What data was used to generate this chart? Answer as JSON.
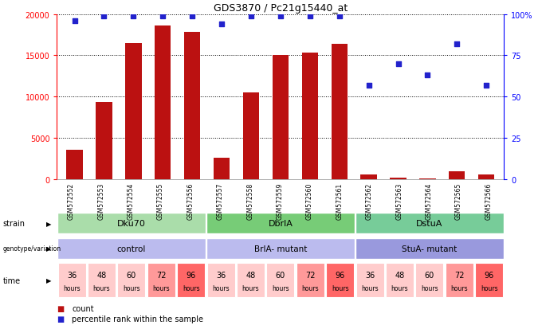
{
  "title": "GDS3870 / Pc21g15440_at",
  "samples": [
    "GSM572552",
    "GSM572553",
    "GSM572554",
    "GSM572555",
    "GSM572556",
    "GSM572557",
    "GSM572558",
    "GSM572559",
    "GSM572560",
    "GSM572561",
    "GSM572562",
    "GSM572563",
    "GSM572564",
    "GSM572565",
    "GSM572566"
  ],
  "counts": [
    3500,
    9300,
    16500,
    18600,
    17800,
    2600,
    10500,
    15000,
    15300,
    16400,
    500,
    200,
    100,
    900,
    500
  ],
  "percentiles": [
    96,
    99,
    99,
    99,
    99,
    94,
    99,
    99,
    99,
    99,
    57,
    70,
    63,
    82,
    57
  ],
  "bar_color": "#BB1111",
  "dot_color": "#2222CC",
  "ylim_left": [
    0,
    20000
  ],
  "ylim_right": [
    0,
    100
  ],
  "yticks_left": [
    0,
    5000,
    10000,
    15000,
    20000
  ],
  "yticks_right": [
    0,
    25,
    50,
    75,
    100
  ],
  "strains": [
    {
      "label": "Dku70",
      "start": 0,
      "end": 5,
      "color": "#AADDAA"
    },
    {
      "label": "DbrlA",
      "start": 5,
      "end": 10,
      "color": "#77CC77"
    },
    {
      "label": "DstuA",
      "start": 10,
      "end": 15,
      "color": "#77CC99"
    }
  ],
  "genotypes": [
    {
      "label": "control",
      "start": 0,
      "end": 5,
      "color": "#BBBBEE"
    },
    {
      "label": "BrlA- mutant",
      "start": 5,
      "end": 10,
      "color": "#BBBBEE"
    },
    {
      "label": "StuA- mutant",
      "start": 10,
      "end": 15,
      "color": "#9999DD"
    }
  ],
  "time_colors": [
    "#FFCCCC",
    "#FFCCCC",
    "#FFCCCC",
    "#FF9999",
    "#FF6666",
    "#FFCCCC",
    "#FFCCCC",
    "#FFCCCC",
    "#FF9999",
    "#FF6666",
    "#FFCCCC",
    "#FFCCCC",
    "#FFCCCC",
    "#FF9999",
    "#FF6666"
  ],
  "time_vals": [
    "36",
    "48",
    "60",
    "72",
    "96",
    "36",
    "48",
    "60",
    "72",
    "96",
    "36",
    "48",
    "60",
    "72",
    "96"
  ],
  "legend_count_color": "#BB1111",
  "legend_dot_color": "#2222CC",
  "background_color": "#FFFFFF"
}
